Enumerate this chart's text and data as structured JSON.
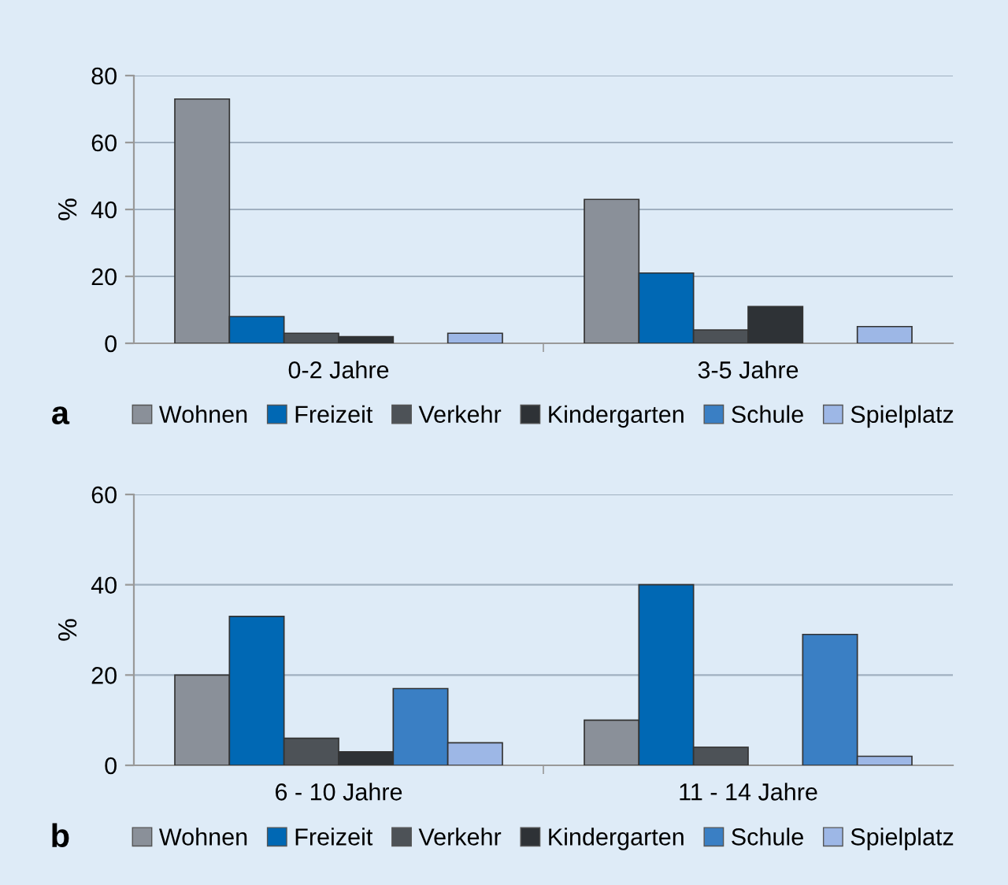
{
  "chart_data": [
    {
      "type": "bar",
      "ylabel": "%",
      "categories": [
        "0-2 Jahre",
        "3-5 Jahre"
      ],
      "ylim": [
        0,
        80
      ],
      "yticks": [
        0,
        20,
        40,
        60,
        80
      ],
      "grid": "y",
      "legend": "bottom",
      "annotations": [
        "a"
      ],
      "series": [
        {
          "name": "Wohnen",
          "color": "#8a9099",
          "values": [
            73,
            43
          ]
        },
        {
          "name": "Freizeit",
          "color": "#0068b4",
          "values": [
            8,
            21
          ]
        },
        {
          "name": "Verkehr",
          "color": "#4d5257",
          "values": [
            3,
            4
          ]
        },
        {
          "name": "Kindergarten",
          "color": "#2e3236",
          "values": [
            2,
            11
          ]
        },
        {
          "name": "Schule",
          "color": "#3a7fc4",
          "values": [
            null,
            null
          ]
        },
        {
          "name": "Spielplatz",
          "color": "#9db7e6",
          "values": [
            3,
            5
          ]
        }
      ]
    },
    {
      "type": "bar",
      "ylabel": "%",
      "categories": [
        "6 - 10 Jahre",
        "11 - 14 Jahre"
      ],
      "ylim": [
        0,
        60
      ],
      "yticks": [
        0,
        20,
        40,
        60
      ],
      "grid": "y",
      "legend": "bottom",
      "annotations": [
        "b"
      ],
      "series": [
        {
          "name": "Wohnen",
          "color": "#8a9099",
          "values": [
            20,
            10
          ]
        },
        {
          "name": "Freizeit",
          "color": "#0068b4",
          "values": [
            33,
            40
          ]
        },
        {
          "name": "Verkehr",
          "color": "#4d5257",
          "values": [
            6,
            4
          ]
        },
        {
          "name": "Kindergarten",
          "color": "#2e3236",
          "values": [
            3,
            null
          ]
        },
        {
          "name": "Schule",
          "color": "#3a7fc4",
          "values": [
            17,
            29
          ]
        },
        {
          "name": "Spielplatz",
          "color": "#9db7e6",
          "values": [
            5,
            2
          ]
        }
      ]
    }
  ]
}
